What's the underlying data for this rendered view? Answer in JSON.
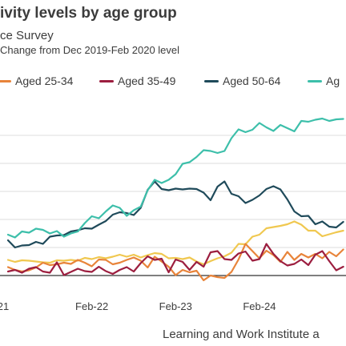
{
  "title": "ivity levels by age group",
  "subtitle": "ce Survey",
  "units": "Change from Dec 2019-Feb 2020 level",
  "source": "Learning and Work Institute a",
  "colors": {
    "aged_25_34": "#E8843A",
    "aged_35_49": "#9C1E3F",
    "aged_50_64": "#1F4A5A",
    "aged_65_plus": "#3DBFAA",
    "extra_series": "#F0C850",
    "gridline": "#dddddd",
    "baseline": "#333333"
  },
  "chart_data": {
    "type": "line",
    "title": "ivity levels by age group",
    "ylabel": "Change from Dec 2019-Feb 2020 level",
    "x": [
      0,
      1,
      2,
      3,
      4,
      5,
      6,
      7,
      8,
      9,
      10,
      11,
      12,
      13,
      14,
      15,
      16,
      17,
      18,
      19,
      20,
      21,
      22,
      23,
      24,
      25,
      26,
      27,
      28,
      29,
      30,
      31,
      32,
      33,
      34,
      35,
      36,
      37,
      38,
      39,
      40,
      41,
      42,
      43,
      44,
      45,
      46,
      47,
      48
    ],
    "x_ticks": [
      {
        "x": 0,
        "label": "21"
      },
      {
        "x": 12,
        "label": "Feb-22"
      },
      {
        "x": 24,
        "label": "Feb-23"
      },
      {
        "x": 36,
        "label": "Feb-24"
      }
    ],
    "ylim": [
      -2,
      42
    ],
    "y_gridlines": [
      0,
      7,
      14,
      21,
      28,
      35
    ],
    "grid": true,
    "legend_position": "top",
    "series": [
      {
        "name": "Aged 25-34",
        "color_key": "aged_25_34",
        "values": [
          2.1,
          1.4,
          1.0,
          1.3,
          2.0,
          3.2,
          2.6,
          2.8,
          3.2,
          2.9,
          3.9,
          3.2,
          2.3,
          4.0,
          3.9,
          2.8,
          3.2,
          3.9,
          4.5,
          3.7,
          2.0,
          4.7,
          3.5,
          2.2,
          0.1,
          1.4,
          0.8,
          1.2,
          -1.2,
          0.0,
          -0.4,
          -0.6,
          0.9,
          4.0,
          7.9,
          6.1,
          4.3,
          6.2,
          5.1,
          3.4,
          5.9,
          3.9,
          5.4,
          4.5,
          5.4,
          4.3,
          5.9,
          4.8,
          6.5
        ]
      },
      {
        "name": "Aged 35-49",
        "color_key": "aged_35_49",
        "values": [
          1.0,
          1.4,
          0.7,
          1.7,
          2.1,
          1.0,
          0.7,
          3.3,
          0.1,
          0.9,
          1.7,
          1.1,
          0.9,
          2.2,
          1.1,
          0.4,
          1.4,
          2.1,
          1.0,
          3.1,
          4.8,
          3.9,
          4.2,
          0.8,
          4.0,
          3.4,
          1.4,
          3.4,
          2.2,
          5.8,
          6.1,
          4.1,
          3.9,
          5.5,
          6.0,
          3.7,
          4.1,
          7.9,
          5.4,
          3.6,
          2.5,
          2.9,
          4.0,
          2.6,
          5.2,
          6.1,
          3.6,
          1.3,
          2.2
        ]
      },
      {
        "name": "Aged 50-64",
        "color_key": "aged_50_64",
        "values": [
          8.8,
          7.0,
          7.5,
          7.6,
          8.4,
          7.9,
          9.7,
          10.0,
          10.1,
          11.0,
          11.3,
          11.8,
          11.7,
          12.7,
          13.6,
          15.2,
          15.8,
          15.6,
          15.1,
          16.9,
          21.4,
          23.5,
          21.6,
          21.3,
          21.7,
          21.5,
          21.7,
          21.6,
          20.7,
          18.8,
          22.2,
          23.5,
          20.4,
          19.8,
          18.1,
          18.9,
          20.0,
          21.6,
          22.3,
          21.5,
          19.0,
          16.0,
          14.8,
          14.9,
          12.8,
          13.5,
          12.2,
          12.0,
          13.4
        ]
      },
      {
        "name": "Ag",
        "color_key": "aged_65_plus",
        "values": [
          10.2,
          9.5,
          11.0,
          10.7,
          11.7,
          11.4,
          10.5,
          11.1,
          9.7,
          10.5,
          11.0,
          13.1,
          14.8,
          14.3,
          16.0,
          17.5,
          16.9,
          14.9,
          16.3,
          17.2,
          21.3,
          23.9,
          23.1,
          23.9,
          25.3,
          27.9,
          28.3,
          29.6,
          31.3,
          31.1,
          30.6,
          31.1,
          34.3,
          36.5,
          35.8,
          36.4,
          38.1,
          37.0,
          36.1,
          37.6,
          36.8,
          36.0,
          38.6,
          38.4,
          38.9,
          39.2,
          38.6,
          39.0,
          39.1
        ]
      },
      {
        "color_key": "extra_series",
        "values": [
          3.9,
          3.4,
          3.8,
          3.7,
          3.5,
          3.3,
          3.2,
          3.8,
          3.7,
          3.9,
          3.7,
          4.4,
          4.1,
          4.6,
          4.3,
          4.7,
          5.2,
          4.7,
          5.2,
          4.5,
          5.1,
          5.6,
          5.4,
          4.3,
          4.4,
          4.1,
          4.5,
          3.5,
          2.8,
          3.6,
          4.3,
          4.8,
          5.7,
          7.9,
          7.8,
          9.7,
          10.2,
          11.8,
          12.1,
          12.4,
          12.8,
          13.5,
          12.7,
          11.2,
          11.2,
          9.8,
          10.3,
          10.8,
          11.2
        ]
      }
    ]
  },
  "legend": [
    {
      "label": "Aged 25-34",
      "color_key": "aged_25_34"
    },
    {
      "label": "Aged 35-49",
      "color_key": "aged_35_49"
    },
    {
      "label": "Aged 50-64",
      "color_key": "aged_50_64"
    },
    {
      "label": "Ag",
      "color_key": "aged_65_plus"
    }
  ]
}
